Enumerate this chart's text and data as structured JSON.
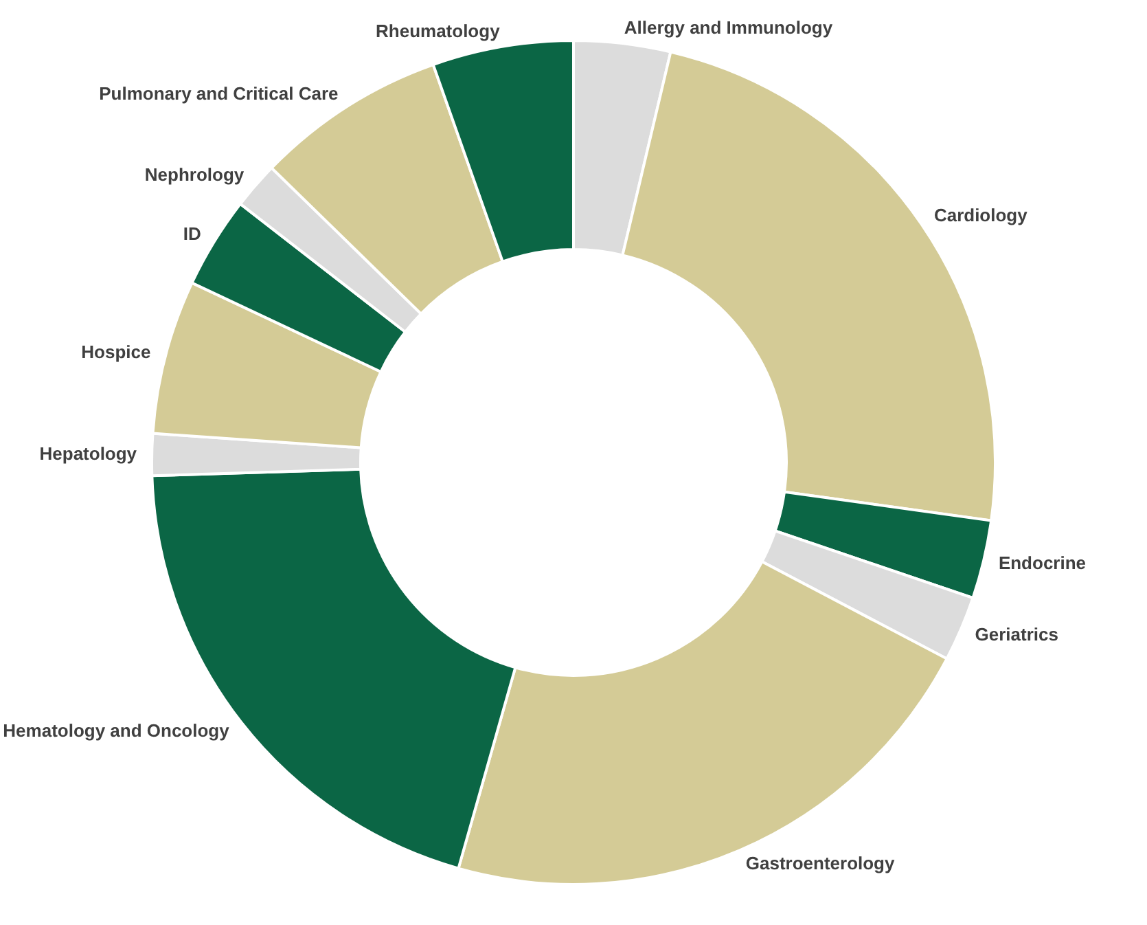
{
  "chart_data": {
    "type": "donut",
    "categories": [
      "Allergy and Immunology",
      "Cardiology",
      "Endocrine",
      "Geriatrics",
      "Gastroenterology",
      "Hematology and Oncology",
      "Hepatology",
      "Hospice",
      "ID",
      "Nephrology",
      "Pulmonary and Critical Care",
      "Rheumatology"
    ],
    "values": [
      3.7,
      23.5,
      3.0,
      2.5,
      21.7,
      20.1,
      1.6,
      5.9,
      3.5,
      1.8,
      7.3,
      5.4
    ],
    "colors": [
      "#dcdcdc",
      "#d4cb96",
      "#0b6645",
      "#dcdcdc",
      "#d4cb96",
      "#0b6645",
      "#dcdcdc",
      "#d4cb96",
      "#0b6645",
      "#dcdcdc",
      "#d4cb96",
      "#0b6645"
    ]
  }
}
